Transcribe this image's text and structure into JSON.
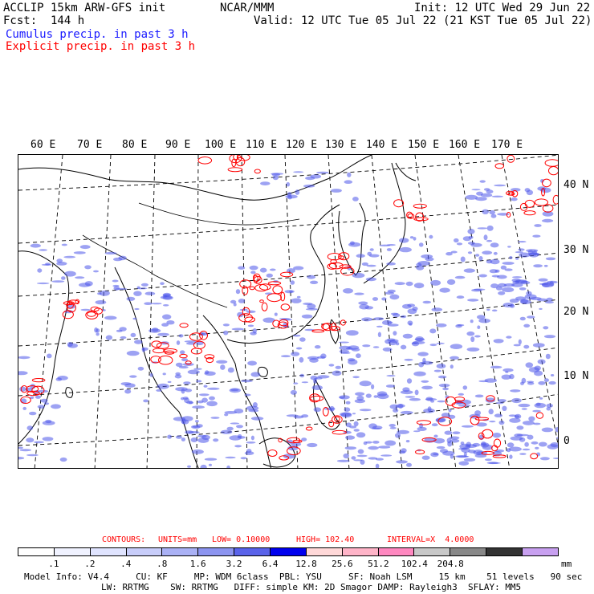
{
  "header": {
    "left_line1": "ACCLIP 15km ARW-GFS init",
    "left_line2": "Fcst:  144 h",
    "center": "NCAR/MMM",
    "init": "Init: 12 UTC Wed 29 Jun 22",
    "valid": "Valid: 12 UTC Tue 05 Jul 22 (21 KST Tue 05 Jul 22)",
    "cumulus_label": "Cumulus precip. in past 3 h",
    "explicit_label": "Explicit precip. in past 3 h"
  },
  "map": {
    "longitude_labels": [
      "60 E",
      "70 E",
      "80 E",
      "90 E",
      "100 E",
      "110 E",
      "120 E",
      "130 E",
      "140 E",
      "150 E",
      "160 E",
      "170 E"
    ],
    "latitude_labels": [
      "40 N",
      "30 N",
      "20 N",
      "10 N",
      "0"
    ],
    "colors": {
      "coastline": "#000000",
      "gridline": "#000000",
      "cumulus": "#3f48e8",
      "explicit": "#ff0000"
    }
  },
  "contours": {
    "label": "CONTOURS:",
    "units": "UNITS=mm",
    "low": "LOW= 0.10000",
    "high": "HIGH= 102.40",
    "interval": "INTERVAL=X  4.0000"
  },
  "colorbar": {
    "colors": [
      "#ffffff",
      "#f0f2ff",
      "#e0e4ff",
      "#c8cdfa",
      "#aab1f5",
      "#8c94f0",
      "#5a63ea",
      "#0000ee",
      "#ffd8d8",
      "#ffb4c8",
      "#ff88c0",
      "#c8c8c8",
      "#888888",
      "#333333",
      "#c8a0f0"
    ],
    "ticks": [
      ".1",
      ".2",
      ".4",
      ".8",
      "1.6",
      "3.2",
      "6.4",
      "12.8",
      "25.6",
      "51.2",
      "102.4",
      "204.8"
    ],
    "units": "mm"
  },
  "model_info": {
    "line1": "Model Info: V4.4     CU: KF     MP: WDM 6class  PBL: YSU     SF: Noah LSM     15 km    51 levels   90 sec",
    "line2": "LW: RRTMG    SW: RRTMG   DIFF: simple KM: 2D Smagor DAMP: Rayleigh3  SFLAY: MM5"
  }
}
